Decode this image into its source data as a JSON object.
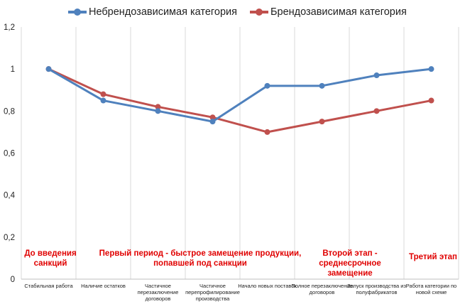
{
  "chart_data": {
    "type": "line",
    "title": "",
    "xlabel": "",
    "ylabel": "",
    "ylim": [
      0,
      1.2
    ],
    "yticks": [
      "0",
      "0,2",
      "0,4",
      "0,6",
      "0,8",
      "1",
      "1,2"
    ],
    "grid": "vertical category separators",
    "legend_position": "top",
    "categories": [
      "Стабильная работа",
      "Наличие остатков",
      "Частичное перезаключение договоров",
      "Частичное перепрофилирование производства",
      "Начало новых поставок",
      "Полное перезаключение договоров",
      "Запуск производства из полуфабрикатов",
      "Работа категории по новой схеме"
    ],
    "series": [
      {
        "name": "Небрендозависимая категория",
        "color": "#4f81bd",
        "values": [
          1,
          0.85,
          0.8,
          0.75,
          0.92,
          0.92,
          0.97,
          1
        ]
      },
      {
        "name": "Брендозависимая категория",
        "color": "#c0504d",
        "values": [
          1,
          0.88,
          0.82,
          0.77,
          0.7,
          0.75,
          0.8,
          0.85
        ]
      }
    ],
    "annotations": [
      {
        "text": "До введения\nсанкций",
        "color": "#e00000"
      },
      {
        "text": "Первый период - быстрое замещение продукции,\nпопавшей под санкции",
        "color": "#e00000"
      },
      {
        "text": "Второй этап -\nсреднесрочное замещение",
        "color": "#e00000"
      },
      {
        "text": "Третий этап",
        "color": "#e00000"
      }
    ]
  }
}
